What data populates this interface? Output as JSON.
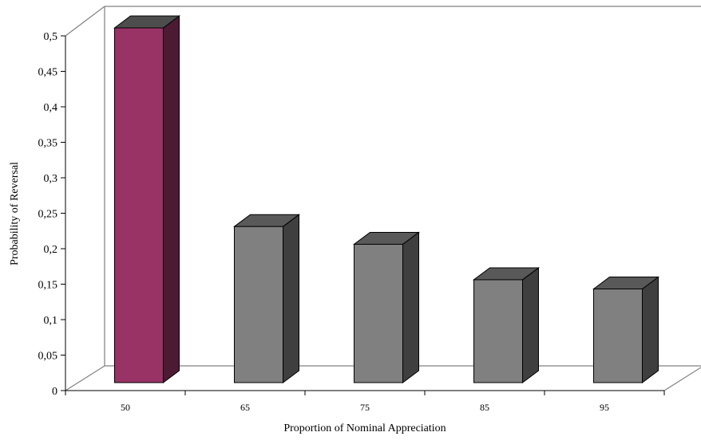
{
  "chart_data": {
    "type": "bar",
    "categories": [
      "50",
      "65",
      "75",
      "85",
      "95"
    ],
    "values": [
      0.5,
      0.22,
      0.195,
      0.145,
      0.132
    ],
    "title": "",
    "xlabel": "Proportion of Nominal Appreciation",
    "ylabel": "Probability of Reversal",
    "ylim": [
      0,
      0.5
    ],
    "yticks": [
      "0",
      "0,05",
      "0,1",
      "0,15",
      "0,2",
      "0,25",
      "0,3",
      "0,35",
      "0,4",
      "0,45",
      "0,5"
    ],
    "grid": false,
    "legend": "none",
    "colors": {
      "highlight_front": "#993366",
      "highlight_top": "#4d4d4d",
      "highlight_side": "#4d1a33",
      "default_front": "#808080",
      "default_top": "#595959",
      "default_side": "#3f3f3f",
      "axis": "#808080"
    },
    "highlight_index": 0
  }
}
